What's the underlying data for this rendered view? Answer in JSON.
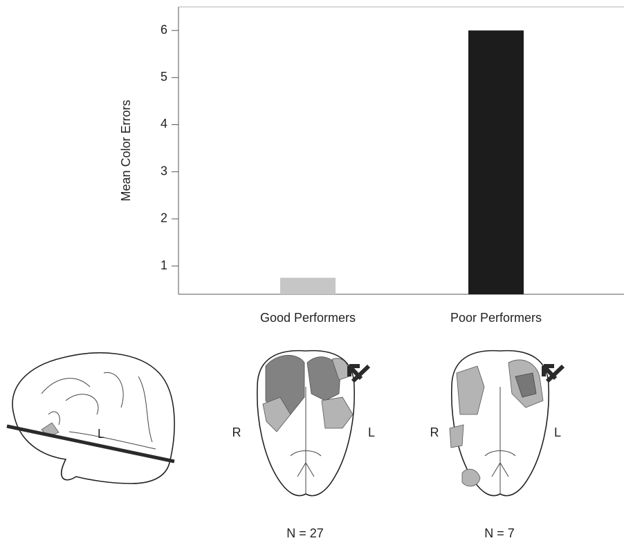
{
  "chart_data": {
    "type": "bar",
    "y_label": "Mean Color Errors",
    "categories": [
      "Good Performers",
      "Poor Performers"
    ],
    "values": [
      0.75,
      6
    ],
    "colors": [
      "#c6c6c6",
      "#1c1c1c"
    ],
    "ylim": [
      0.4,
      6.5
    ],
    "yticks": [
      1,
      2,
      3,
      4,
      5,
      6
    ],
    "annotations": [
      "L",
      "R",
      "L",
      "N = 27",
      "R",
      "L",
      "N = 7"
    ]
  }
}
